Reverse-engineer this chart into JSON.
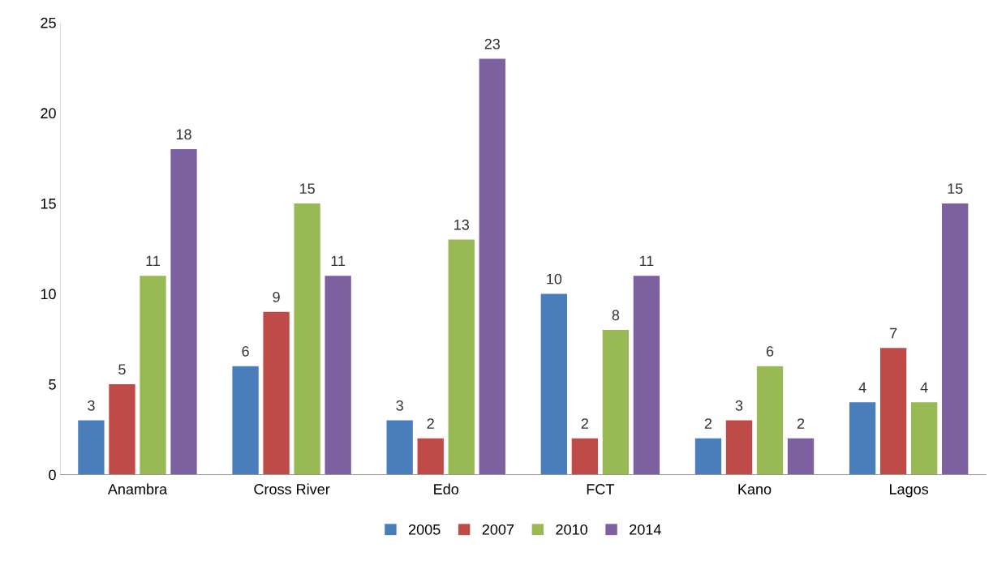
{
  "chart_data": {
    "type": "bar",
    "categories": [
      "Anambra",
      "Cross River",
      "Edo",
      "FCT",
      "Kano",
      "Lagos"
    ],
    "series": [
      {
        "name": "2005",
        "color": "#4a7ebb",
        "values": [
          3,
          6,
          3,
          10,
          2,
          4
        ]
      },
      {
        "name": "2007",
        "color": "#be4b48",
        "values": [
          5,
          9,
          2,
          2,
          3,
          7
        ]
      },
      {
        "name": "2010",
        "color": "#98b954",
        "values": [
          11,
          15,
          13,
          8,
          6,
          4
        ]
      },
      {
        "name": "2014",
        "color": "#7d60a0",
        "values": [
          18,
          11,
          23,
          11,
          2,
          15
        ]
      }
    ],
    "ylim": [
      0,
      25
    ],
    "yticks": [
      0,
      5,
      10,
      15,
      20,
      25
    ],
    "grid": false,
    "legend": "bottom",
    "data_labels": true
  }
}
